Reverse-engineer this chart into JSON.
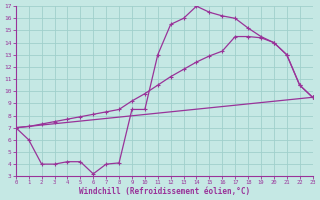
{
  "xlabel": "Windchill (Refroidissement éolien,°C)",
  "bg_color": "#c5e8e4",
  "grid_color": "#a0d0cc",
  "line_color": "#993399",
  "xlim": [
    0,
    23
  ],
  "ylim": [
    3,
    17
  ],
  "xticks": [
    0,
    1,
    2,
    3,
    4,
    5,
    6,
    7,
    8,
    9,
    10,
    11,
    12,
    13,
    14,
    15,
    16,
    17,
    18,
    19,
    20,
    21,
    22,
    23
  ],
  "yticks": [
    3,
    4,
    5,
    6,
    7,
    8,
    9,
    10,
    11,
    12,
    13,
    14,
    15,
    16,
    17
  ],
  "curve1_x": [
    0,
    1,
    2,
    3,
    4,
    5,
    6,
    7,
    8,
    9,
    10,
    11,
    12,
    13,
    14,
    15,
    16,
    17,
    18,
    19,
    20,
    21,
    22,
    23
  ],
  "curve1_y": [
    7.0,
    6.0,
    4.0,
    4.0,
    4.2,
    4.2,
    3.2,
    4.0,
    4.1,
    8.5,
    8.5,
    13.0,
    15.5,
    16.0,
    17.0,
    16.5,
    16.2,
    16.0,
    15.2,
    14.5,
    14.0,
    13.0,
    10.5,
    9.5
  ],
  "curve2_x": [
    0,
    1,
    2,
    3,
    4,
    5,
    6,
    7,
    8,
    9,
    10,
    11,
    12,
    13,
    14,
    15,
    16,
    17,
    18,
    19,
    20,
    21,
    22,
    23
  ],
  "curve2_y": [
    7.0,
    7.1,
    7.3,
    7.5,
    7.7,
    7.9,
    8.1,
    8.3,
    8.5,
    9.2,
    9.8,
    10.5,
    11.2,
    11.8,
    12.4,
    12.9,
    13.3,
    14.5,
    14.5,
    14.4,
    14.0,
    13.0,
    10.5,
    9.5
  ],
  "curve3_x": [
    0,
    23
  ],
  "curve3_y": [
    7.0,
    9.5
  ]
}
